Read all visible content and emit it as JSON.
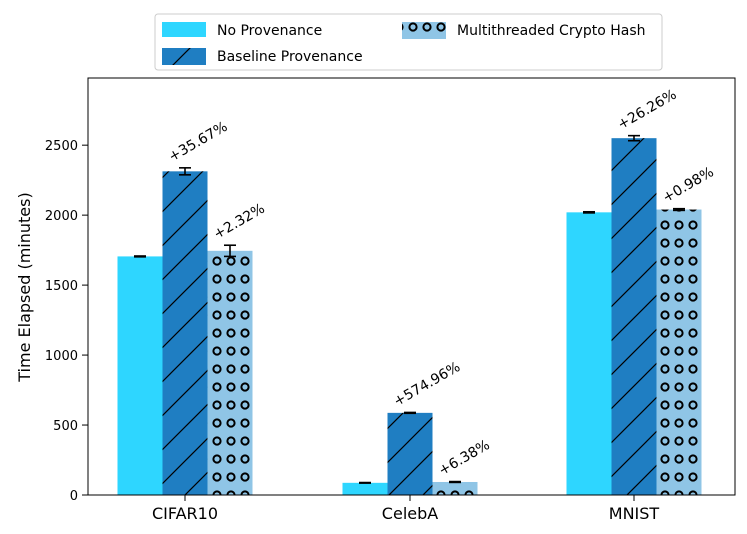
{
  "chart_data": {
    "type": "bar",
    "title": "",
    "xlabel": "",
    "ylabel": "Time Elapsed (minutes)",
    "ylim": [
      0,
      2980
    ],
    "yticks": [
      0,
      500,
      1000,
      1500,
      2000,
      2500
    ],
    "categories": [
      "CIFAR10",
      "CelebA",
      "MNIST"
    ],
    "series": [
      {
        "name": "No Provenance",
        "color": "#2ed6ff",
        "pattern": "solid",
        "values": [
          1705,
          87,
          2020
        ],
        "errors": [
          3,
          2,
          4
        ],
        "annotations": [
          "",
          "",
          ""
        ]
      },
      {
        "name": "Baseline Provenance",
        "color": "#1f7ec2",
        "pattern": "diagonal",
        "values": [
          2313,
          587,
          2550
        ],
        "errors": [
          25,
          3,
          18
        ],
        "annotations": [
          "+35.67%",
          "+574.96%",
          "+26.26%"
        ]
      },
      {
        "name": "Multithreaded Crypto Hash",
        "color": "#8fc5e6",
        "pattern": "circles",
        "values": [
          1745,
          93,
          2040
        ],
        "errors": [
          40,
          3,
          6
        ],
        "annotations": [
          "+2.32%",
          "+6.38%",
          "+0.98%"
        ]
      }
    ],
    "legend": {
      "position": "top-center",
      "entries": [
        "No Provenance",
        "Baseline Provenance",
        "Multithreaded Crypto Hash"
      ]
    }
  }
}
